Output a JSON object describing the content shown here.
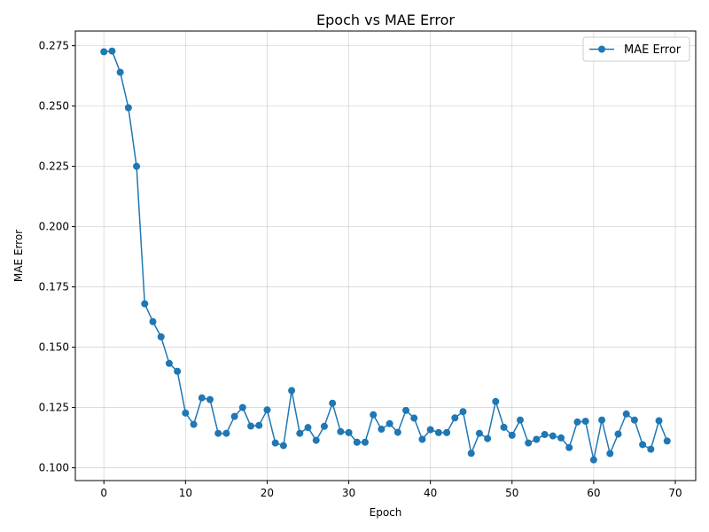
{
  "chart_data": {
    "type": "line",
    "title": "Epoch vs MAE Error",
    "xlabel": "Epoch",
    "ylabel": "MAE Error",
    "xlim": [
      -3.5,
      72.5
    ],
    "ylim": [
      0.0947,
      0.2811
    ],
    "xticks": [
      0,
      10,
      20,
      30,
      40,
      50,
      60,
      70
    ],
    "xtick_labels": [
      "0",
      "10",
      "20",
      "30",
      "40",
      "50",
      "60",
      "70"
    ],
    "yticks": [
      0.1,
      0.125,
      0.15,
      0.175,
      0.2,
      0.225,
      0.25,
      0.275
    ],
    "ytick_labels": [
      "0.100",
      "0.125",
      "0.150",
      "0.175",
      "0.200",
      "0.225",
      "0.250",
      "0.275"
    ],
    "grid": true,
    "legend_position": "top-right",
    "series": [
      {
        "name": "MAE Error",
        "color": "#1f77b4",
        "marker": "circle",
        "x": [
          0,
          1,
          2,
          3,
          4,
          5,
          6,
          7,
          8,
          9,
          10,
          11,
          12,
          13,
          14,
          15,
          16,
          17,
          18,
          19,
          20,
          21,
          22,
          23,
          24,
          25,
          26,
          27,
          28,
          29,
          30,
          31,
          32,
          33,
          34,
          35,
          36,
          37,
          38,
          39,
          40,
          41,
          42,
          43,
          44,
          45,
          46,
          47,
          48,
          49,
          50,
          51,
          52,
          53,
          54,
          55,
          56,
          57,
          58,
          59,
          60,
          61,
          62,
          63,
          64,
          65,
          66,
          67,
          68,
          69
        ],
        "y": [
          0.2725,
          0.2728,
          0.264,
          0.2493,
          0.225,
          0.168,
          0.1606,
          0.1543,
          0.1433,
          0.14,
          0.1227,
          0.118,
          0.129,
          0.1283,
          0.1143,
          0.1143,
          0.1213,
          0.125,
          0.1173,
          0.1176,
          0.124,
          0.1103,
          0.1092,
          0.132,
          0.1143,
          0.1167,
          0.1114,
          0.1172,
          0.1268,
          0.115,
          0.1146,
          0.1106,
          0.1106,
          0.122,
          0.116,
          0.1183,
          0.1147,
          0.1238,
          0.1206,
          0.1118,
          0.1158,
          0.1146,
          0.1146,
          0.1207,
          0.1233,
          0.106,
          0.1143,
          0.1121,
          0.1275,
          0.1168,
          0.1135,
          0.1198,
          0.1103,
          0.1118,
          0.1138,
          0.1132,
          0.1124,
          0.1084,
          0.119,
          0.1193,
          0.1033,
          0.1198,
          0.1059,
          0.114,
          0.1223,
          0.1198,
          0.1096,
          0.1077,
          0.1195,
          0.1111
        ]
      }
    ]
  }
}
